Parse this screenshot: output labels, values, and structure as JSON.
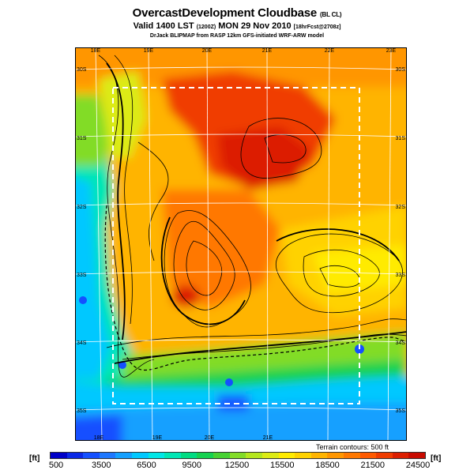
{
  "title": {
    "main": "OvercastDevelopment Cloudbase",
    "tag": "(BL CL)"
  },
  "subtitle": {
    "valid_text": "Valid 1400 LST",
    "utc": "(1200Z)",
    "date": "MON 29 Nov 2010",
    "forecast": "[18hrFcst@2708z]"
  },
  "credit": "DrJack BLIPMAP from RASP 12km GFS-initiated WRF-ARW model",
  "map": {
    "lon_labels_top": [
      "18E",
      "19E",
      "20E",
      "21E",
      "22E",
      "23E"
    ],
    "lon_labels_bottom": [
      "18E",
      "19E",
      "20E",
      "21E"
    ],
    "lat_labels_left": [
      "30S",
      "31S",
      "32S",
      "33S",
      "34S",
      "35S"
    ],
    "lat_labels_right": [
      "30S",
      "31S",
      "32S",
      "33S",
      "34S",
      "35S"
    ],
    "contour_note": "Terrain contours: 500 ft"
  },
  "legend": {
    "unit_left": "[ft]",
    "unit_right": "[ft]",
    "labels": [
      "500",
      "3500",
      "6500",
      "9500",
      "12500",
      "15500",
      "18500",
      "21500",
      "24500"
    ],
    "colors": [
      "#0000c8",
      "#0a28e6",
      "#1450ff",
      "#1e78ff",
      "#14a0ff",
      "#00c8ff",
      "#00e6e6",
      "#00e6b4",
      "#00dc82",
      "#14d250",
      "#46d232",
      "#82dc28",
      "#b4e61e",
      "#dceb14",
      "#ffeb00",
      "#ffd200",
      "#ffb400",
      "#ff9600",
      "#ff7800",
      "#ff5a00",
      "#f03c00",
      "#dc1e00",
      "#c80a00"
    ]
  }
}
